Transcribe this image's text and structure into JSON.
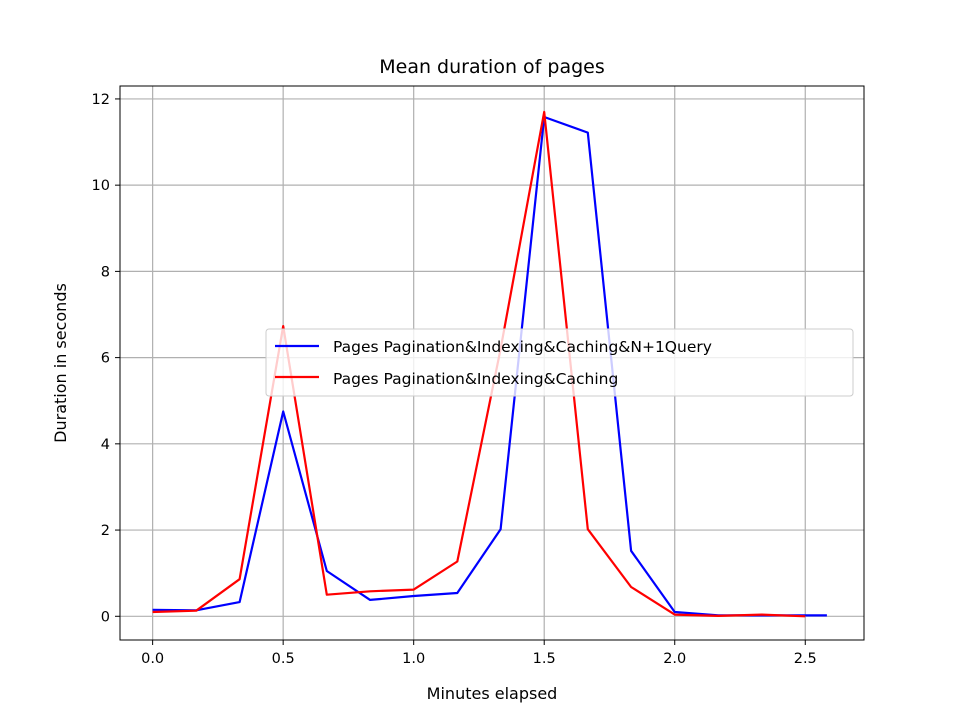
{
  "chart_data": {
    "type": "line",
    "title": "Mean duration of pages",
    "xlabel": "Minutes elapsed",
    "ylabel": "Duration in seconds",
    "xlim": [
      -0.125,
      2.725
    ],
    "ylim": [
      -0.55,
      12.3
    ],
    "xticks": [
      "0.0",
      "0.5",
      "1.0",
      "1.5",
      "2.0",
      "2.5"
    ],
    "yticks": [
      "0",
      "2",
      "4",
      "6",
      "8",
      "10",
      "12"
    ],
    "grid": true,
    "legend_position": "center-right",
    "series": [
      {
        "name": "Pages Pagination&Indexing&Caching&N+1Query",
        "color": "#0000ff",
        "x": [
          0.0,
          0.167,
          0.333,
          0.5,
          0.667,
          0.833,
          1.0,
          1.167,
          1.333,
          1.5,
          1.667,
          1.833,
          2.0,
          2.167,
          2.333,
          2.5,
          2.583
        ],
        "y": [
          0.15,
          0.14,
          0.33,
          4.75,
          1.05,
          0.38,
          0.47,
          0.54,
          2.02,
          11.58,
          11.22,
          1.52,
          0.1,
          0.02,
          0.02,
          0.02,
          0.02
        ]
      },
      {
        "name": "Pages Pagination&Indexing&Caching",
        "color": "#ff0000",
        "x": [
          0.0,
          0.167,
          0.333,
          0.5,
          0.667,
          0.833,
          1.0,
          1.167,
          1.333,
          1.5,
          1.667,
          1.833,
          2.0,
          2.167,
          2.333,
          2.5
        ],
        "y": [
          0.1,
          0.13,
          0.86,
          6.73,
          0.5,
          0.58,
          0.62,
          1.27,
          6.2,
          11.7,
          2.02,
          0.68,
          0.04,
          0.01,
          0.04,
          0.0
        ]
      }
    ]
  }
}
